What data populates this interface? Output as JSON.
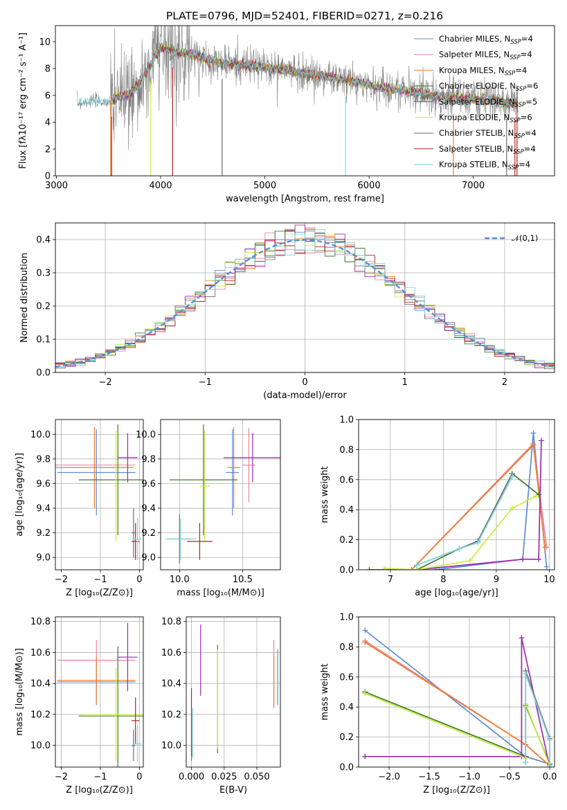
{
  "figure": {
    "title": "PLATE=0796, MJD=52401, FIBERID=0271, z=0.216"
  },
  "colors": {
    "chabrier_miles": "#5b8bd6",
    "salpeter_miles": "#e8829e",
    "kroupa_miles": "#f07f2c",
    "chabrier_elodie": "#3d7a2c",
    "salpeter_elodie": "#9b27b0",
    "kroupa_elodie": "#c9ec3c",
    "chabrier_stelib": "#6f6f6f",
    "salpeter_stelib": "#b22222",
    "kroupa_stelib": "#7fd5dd"
  },
  "legend": [
    {
      "model": "Chabrier MILES",
      "nssp": "4",
      "color_key": "chabrier_miles"
    },
    {
      "model": "Salpeter MILES",
      "nssp": "4",
      "color_key": "salpeter_miles"
    },
    {
      "model": "Kroupa MILES",
      "nssp": "4",
      "color_key": "kroupa_miles"
    },
    {
      "model": "Chabrier ELODIE",
      "nssp": "6",
      "color_key": "chabrier_elodie"
    },
    {
      "model": "Salpeter ELODIE",
      "nssp": "5",
      "color_key": "salpeter_elodie"
    },
    {
      "model": "Kroupa ELODIE",
      "nssp": "6",
      "color_key": "kroupa_elodie"
    },
    {
      "model": "Chabrier STELIB",
      "nssp": "4",
      "color_key": "chabrier_stelib"
    },
    {
      "model": "Salpeter STELIB",
      "nssp": "4",
      "color_key": "salpeter_stelib"
    },
    {
      "model": "Kroupa STELIB",
      "nssp": "4",
      "color_key": "kroupa_stelib"
    }
  ],
  "legend_nssp_prefix": "N",
  "legend_nssp_sub": "SSP",
  "normal_legend": "𝒩(0,1)",
  "chart_data": [
    {
      "id": "spectrum",
      "type": "line",
      "xlabel": "wavelength [Angstrom, rest frame]",
      "ylabel": "Flux [fλ10⁻¹⁷ erg cm⁻² s⁻¹ A⁻¹]",
      "xlim": [
        2990,
        7780
      ],
      "ylim": [
        0,
        11.2
      ],
      "xticks": [
        3000,
        4000,
        5000,
        6000,
        7000
      ],
      "yticks": [
        0,
        2,
        4,
        6,
        8,
        10
      ],
      "grid": false,
      "legend_position": "upper right",
      "observed_range": [
        3200,
        7430
      ],
      "continuum": [
        [
          3200,
          5.4
        ],
        [
          3350,
          5.6
        ],
        [
          3500,
          5.5
        ],
        [
          3600,
          5.9
        ],
        [
          3700,
          6.1
        ],
        [
          3800,
          7.0
        ],
        [
          3900,
          8.2
        ],
        [
          4000,
          9.6
        ],
        [
          4100,
          9.3
        ],
        [
          4300,
          9.0
        ],
        [
          4600,
          8.4
        ],
        [
          4900,
          8.2
        ],
        [
          5200,
          7.9
        ],
        [
          5500,
          7.5
        ],
        [
          5800,
          7.1
        ],
        [
          6100,
          6.6
        ],
        [
          6400,
          6.3
        ],
        [
          6700,
          5.9
        ],
        [
          7000,
          5.7
        ],
        [
          7200,
          5.6
        ],
        [
          7430,
          5.3
        ]
      ],
      "model_start": 3520,
      "dips": [
        3530,
        3905,
        4115,
        4590,
        5775,
        6810,
        7320,
        7400
      ]
    },
    {
      "id": "residuals",
      "type": "step",
      "xlabel": "(data-model)/error",
      "ylabel": "Normed distribution",
      "xlim": [
        -2.5,
        2.5
      ],
      "ylim": [
        0,
        0.45
      ],
      "xticks": [
        -2,
        -1,
        0,
        1,
        2
      ],
      "yticks": [
        0,
        0.1,
        0.2,
        0.3,
        0.4
      ],
      "grid": true,
      "legend_position": "upper right",
      "bins": 50,
      "normal": {
        "mean": 0,
        "sigma": 1
      }
    },
    {
      "id": "z_age",
      "type": "errorbar",
      "xlabel": "Z [log₁₀(Z/Z⊙)]",
      "ylabel": "age  [log₁₀(age/yr)]",
      "xlim": [
        -2.15,
        0.1
      ],
      "ylim": [
        8.9,
        10.12
      ],
      "xticks": [
        -2,
        -1,
        0
      ],
      "yticks": [
        9.0,
        9.2,
        9.4,
        9.6,
        9.8,
        10.0
      ],
      "grid": true,
      "points": [
        {
          "color_key": "chabrier_miles",
          "x": -1.1,
          "xerr": 1.0,
          "y": 9.69,
          "yerr": 0.35
        },
        {
          "color_key": "salpeter_miles",
          "x": -1.15,
          "xerr": 1.05,
          "y": 9.75,
          "yerr": 0.3
        },
        {
          "color_key": "kroupa_miles",
          "x": -1.15,
          "xerr": 1.0,
          "y": 9.73,
          "yerr": 0.33
        },
        {
          "color_key": "chabrier_elodie",
          "x": -0.55,
          "xerr": 1.0,
          "y": 9.63,
          "yerr": 0.45
        },
        {
          "color_key": "salpeter_elodie",
          "x": -0.3,
          "xerr": 0.25,
          "y": 9.81,
          "yerr": 0.2
        },
        {
          "color_key": "kroupa_elodie",
          "x": -0.6,
          "xerr": 0.05,
          "y": 9.58,
          "yerr": 0.45
        },
        {
          "color_key": "chabrier_stelib",
          "x": -0.15,
          "xerr": 0.05,
          "y": 9.2,
          "yerr": 0.2
        },
        {
          "color_key": "salpeter_stelib",
          "x": -0.1,
          "xerr": 0.1,
          "y": 9.13,
          "yerr": 0.15
        },
        {
          "color_key": "kroupa_stelib",
          "x": -0.05,
          "xerr": 0.1,
          "y": 9.15,
          "yerr": 0.17
        }
      ]
    },
    {
      "id": "mass_age",
      "type": "errorbar",
      "xlabel": "mass [log₁₀(M/M⊙)]",
      "ylabel": "",
      "xlim": [
        9.85,
        10.8
      ],
      "ylim": [
        8.9,
        10.12
      ],
      "xticks": [
        10.0,
        10.5
      ],
      "yticks": [
        9.0,
        9.2,
        9.4,
        9.6,
        9.8,
        10.0
      ],
      "grid": true,
      "points": [
        {
          "color_key": "chabrier_miles",
          "x": 10.42,
          "xerr": 0.05,
          "y": 9.69,
          "yerr": 0.35
        },
        {
          "color_key": "salpeter_miles",
          "x": 10.55,
          "xerr": 0.05,
          "y": 9.75,
          "yerr": 0.3
        },
        {
          "color_key": "kroupa_miles",
          "x": 10.43,
          "xerr": 0.05,
          "y": 9.73,
          "yerr": 0.33
        },
        {
          "color_key": "chabrier_elodie",
          "x": 10.19,
          "xerr": 0.27,
          "y": 9.63,
          "yerr": 0.45
        },
        {
          "color_key": "salpeter_elodie",
          "x": 10.58,
          "xerr": 0.23,
          "y": 9.81,
          "yerr": 0.2
        },
        {
          "color_key": "kroupa_elodie",
          "x": 10.2,
          "xerr": 0.04,
          "y": 9.58,
          "yerr": 0.45
        },
        {
          "color_key": "chabrier_stelib",
          "x": 10.0,
          "xerr": 0.1,
          "y": 9.15,
          "yerr": 0.2
        },
        {
          "color_key": "salpeter_stelib",
          "x": 10.16,
          "xerr": 0.1,
          "y": 9.13,
          "yerr": 0.15
        },
        {
          "color_key": "kroupa_stelib",
          "x": 10.01,
          "xerr": 0.12,
          "y": 9.15,
          "yerr": 0.17
        }
      ]
    },
    {
      "id": "age_weight",
      "type": "line",
      "xlabel": "age  [log₁₀(age/yr)]",
      "ylabel": "mass weight",
      "xlim": [
        6.4,
        10.1
      ],
      "ylim": [
        0,
        1.0
      ],
      "xticks": [
        7,
        8,
        9,
        10
      ],
      "yticks": [
        0,
        0.2,
        0.4,
        0.6,
        0.8,
        1.0
      ],
      "grid": true,
      "series": [
        {
          "color_key": "chabrier_miles",
          "x": [
            7.85,
            9.5,
            9.7,
            9.95
          ],
          "y": [
            0.0,
            0.07,
            0.91,
            0.02
          ]
        },
        {
          "color_key": "salpeter_miles",
          "x": [
            7.4,
            9.7,
            9.95
          ],
          "y": [
            0.0,
            0.84,
            0.15
          ]
        },
        {
          "color_key": "kroupa_miles",
          "x": [
            7.4,
            9.7,
            9.92
          ],
          "y": [
            0.0,
            0.83,
            0.15
          ]
        },
        {
          "color_key": "chabrier_elodie",
          "x": [
            6.6,
            7.5,
            8.3,
            8.65,
            9.3,
            9.8
          ],
          "y": [
            0.0,
            0.0,
            0.14,
            0.19,
            0.64,
            0.5
          ]
        },
        {
          "color_key": "salpeter_elodie",
          "x": [
            7.5,
            9.5,
            9.8,
            9.85
          ],
          "y": [
            0.0,
            0.07,
            0.07,
            0.86
          ]
        },
        {
          "color_key": "kroupa_elodie",
          "x": [
            6.9,
            7.5,
            8.5,
            9.3,
            9.75
          ],
          "y": [
            0.01,
            0.0,
            0.06,
            0.41,
            0.49
          ]
        },
        {
          "color_key": "chabrier_stelib",
          "x": [
            7.5,
            8.3,
            8.65,
            9.3
          ],
          "y": [
            0.03,
            0.14,
            0.19,
            0.64
          ]
        },
        {
          "color_key": "kroupa_stelib",
          "x": [
            7.5,
            8.3,
            8.65,
            9.3
          ],
          "y": [
            0.03,
            0.14,
            0.18,
            0.62
          ]
        }
      ]
    },
    {
      "id": "z_mass",
      "type": "errorbar",
      "xlabel": "Z [log₁₀(Z/Z⊙)]",
      "ylabel": "mass [log₁₀(M/M⊙)]",
      "xlim": [
        -2.15,
        0.1
      ],
      "ylim": [
        9.86,
        10.83
      ],
      "xticks": [
        -2,
        -1,
        0
      ],
      "yticks": [
        10.0,
        10.2,
        10.4,
        10.6,
        10.8
      ],
      "grid": true,
      "points": [
        {
          "color_key": "chabrier_miles",
          "x": -1.1,
          "xerr": 1.0,
          "y": 10.41,
          "yerr": 0.15
        },
        {
          "color_key": "salpeter_miles",
          "x": -1.1,
          "xerr": 1.0,
          "y": 10.55,
          "yerr": 0.13
        },
        {
          "color_key": "kroupa_miles",
          "x": -1.1,
          "xerr": 1.0,
          "y": 10.42,
          "yerr": 0.15
        },
        {
          "color_key": "chabrier_elodie",
          "x": -0.55,
          "xerr": 1.0,
          "y": 10.19,
          "yerr": 0.45
        },
        {
          "color_key": "salpeter_elodie",
          "x": -0.3,
          "xerr": 0.25,
          "y": 10.57,
          "yerr": 0.22
        },
        {
          "color_key": "kroupa_elodie",
          "x": -0.6,
          "xerr": 0.8,
          "y": 10.2,
          "yerr": 0.3
        },
        {
          "color_key": "chabrier_stelib",
          "x": -0.15,
          "xerr": 0.05,
          "y": 10.0,
          "yerr": 0.1
        },
        {
          "color_key": "salpeter_stelib",
          "x": -0.1,
          "xerr": 0.1,
          "y": 10.16,
          "yerr": 0.15
        },
        {
          "color_key": "kroupa_stelib",
          "x": -0.05,
          "xerr": 0.1,
          "y": 10.01,
          "yerr": 0.12
        }
      ]
    },
    {
      "id": "ebv_mass",
      "type": "errorbar",
      "xlabel": "E(B-V)",
      "ylabel": "",
      "xlim": [
        -0.004,
        0.068
      ],
      "ylim": [
        9.86,
        10.83
      ],
      "xticks": [
        0.0,
        0.025,
        0.05
      ],
      "yticks": [
        10.0,
        10.2,
        10.4,
        10.6,
        10.8
      ],
      "grid": true,
      "points": [
        {
          "color_key": "chabrier_miles",
          "x": 0.066,
          "xerr": 0.0,
          "y": 10.44,
          "yerr": 0.18
        },
        {
          "color_key": "salpeter_miles",
          "x": 0.063,
          "xerr": 0.0,
          "y": 10.46,
          "yerr": 0.22
        },
        {
          "color_key": "kroupa_miles",
          "x": 0.063,
          "xerr": 0.0,
          "y": 10.42,
          "yerr": 0.17
        },
        {
          "color_key": "chabrier_elodie",
          "x": 0.02,
          "xerr": 0.0,
          "y": 10.3,
          "yerr": 0.35
        },
        {
          "color_key": "salpeter_elodie",
          "x": 0.007,
          "xerr": 0.0,
          "y": 10.55,
          "yerr": 0.23
        },
        {
          "color_key": "kroupa_elodie",
          "x": 0.02,
          "xerr": 0.0,
          "y": 10.3,
          "yerr": 0.32
        },
        {
          "color_key": "chabrier_stelib",
          "x": 0.0,
          "xerr": 0.0,
          "y": 10.05,
          "yerr": 0.15
        },
        {
          "color_key": "salpeter_stelib",
          "x": 0.0,
          "xerr": 0.0,
          "y": 10.15,
          "yerr": 0.22
        },
        {
          "color_key": "kroupa_stelib",
          "x": 0.001,
          "xerr": 0.0,
          "y": 10.08,
          "yerr": 0.16
        }
      ]
    },
    {
      "id": "z_weight",
      "type": "line",
      "xlabel": "Z [log₁₀(Z/Z⊙)]",
      "ylabel": "mass weight",
      "xlim": [
        -2.38,
        0.06
      ],
      "ylim": [
        0,
        1.0
      ],
      "xticks": [
        -2.0,
        -1.5,
        -1.0,
        -0.5,
        0.0
      ],
      "yticks": [
        0,
        0.2,
        0.4,
        0.6,
        0.8,
        1.0
      ],
      "grid": true,
      "series": [
        {
          "color_key": "chabrier_miles",
          "x": [
            -2.3,
            -0.3,
            0.0
          ],
          "y": [
            0.91,
            0.07,
            0.02
          ]
        },
        {
          "color_key": "salpeter_miles",
          "x": [
            -2.3,
            -0.3,
            0.0
          ],
          "y": [
            0.84,
            0.15,
            0.01
          ]
        },
        {
          "color_key": "kroupa_miles",
          "x": [
            -2.3,
            -0.3,
            0.0
          ],
          "y": [
            0.83,
            0.15,
            0.01
          ]
        },
        {
          "color_key": "chabrier_elodie",
          "x": [
            -2.3,
            -0.3,
            -0.3,
            0.0
          ],
          "y": [
            0.5,
            0.07,
            0.41,
            0.02
          ]
        },
        {
          "color_key": "salpeter_elodie",
          "x": [
            -2.3,
            -0.35,
            -0.35,
            0.0
          ],
          "y": [
            0.07,
            0.07,
            0.86,
            0.0
          ]
        },
        {
          "color_key": "kroupa_elodie",
          "x": [
            -2.3,
            -0.3,
            -0.3,
            0.0
          ],
          "y": [
            0.49,
            0.06,
            0.42,
            0.01
          ]
        },
        {
          "color_key": "chabrier_stelib",
          "x": [
            -0.3,
            -0.3,
            0.0,
            0.0
          ],
          "y": [
            0.03,
            0.64,
            0.19,
            0.01
          ]
        },
        {
          "color_key": "kroupa_stelib",
          "x": [
            -0.3,
            -0.3,
            0.0,
            0.0
          ],
          "y": [
            0.03,
            0.62,
            0.18,
            0.01
          ]
        }
      ]
    }
  ]
}
